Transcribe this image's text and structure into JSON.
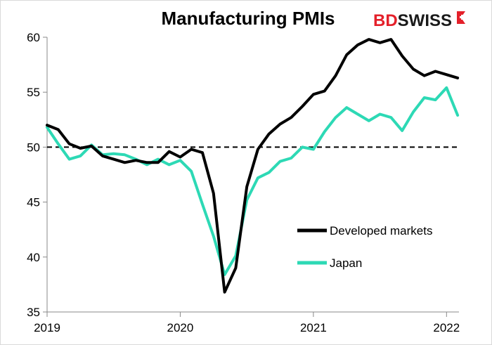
{
  "chart_data": {
    "type": "line",
    "title": "Manufacturing PMIs",
    "xlabel": "",
    "ylabel": "",
    "ylim": [
      35,
      60
    ],
    "y_ticks": [
      35,
      40,
      45,
      50,
      55,
      60
    ],
    "x_ticks": [
      "2019",
      "2020",
      "2021",
      "2022"
    ],
    "reference_line": 50,
    "legend_position": "bottom-right",
    "grid": false,
    "x": [
      "2019-01",
      "2019-02",
      "2019-03",
      "2019-04",
      "2019-05",
      "2019-06",
      "2019-07",
      "2019-08",
      "2019-09",
      "2019-10",
      "2019-11",
      "2019-12",
      "2020-01",
      "2020-02",
      "2020-03",
      "2020-04",
      "2020-05",
      "2020-06",
      "2020-07",
      "2020-08",
      "2020-09",
      "2020-10",
      "2020-11",
      "2020-12",
      "2021-01",
      "2021-02",
      "2021-03",
      "2021-04",
      "2021-05",
      "2021-06",
      "2021-07",
      "2021-08",
      "2021-09",
      "2021-10",
      "2021-11",
      "2021-12",
      "2022-01",
      "2022-02"
    ],
    "series": [
      {
        "name": "Developed markets",
        "color": "#000000",
        "values": [
          52.0,
          51.6,
          50.3,
          49.9,
          50.1,
          49.2,
          48.9,
          48.6,
          48.8,
          48.6,
          48.6,
          49.6,
          49.1,
          49.8,
          49.5,
          45.8,
          36.8,
          39.0,
          46.4,
          49.8,
          51.2,
          52.1,
          52.7,
          53.7,
          54.8,
          55.1,
          56.5,
          58.4,
          59.3,
          59.8,
          59.5,
          59.8,
          58.3,
          57.1,
          56.5,
          56.9,
          56.6,
          56.3
        ]
      },
      {
        "name": "Japan",
        "color": "#2dd9b5",
        "values": [
          51.8,
          50.3,
          48.9,
          49.2,
          50.2,
          49.3,
          49.4,
          49.3,
          48.9,
          48.4,
          48.9,
          48.4,
          48.8,
          47.8,
          44.8,
          41.9,
          38.4,
          40.1,
          45.2,
          47.2,
          47.7,
          48.7,
          49.0,
          50.0,
          49.8,
          51.4,
          52.7,
          53.6,
          53.0,
          52.4,
          53.0,
          52.7,
          51.5,
          53.2,
          54.5,
          54.3,
          55.4,
          52.9
        ]
      }
    ]
  },
  "logo": {
    "text_red": "BD",
    "text_black": "SWISS",
    "mark": "flag-arrow"
  }
}
